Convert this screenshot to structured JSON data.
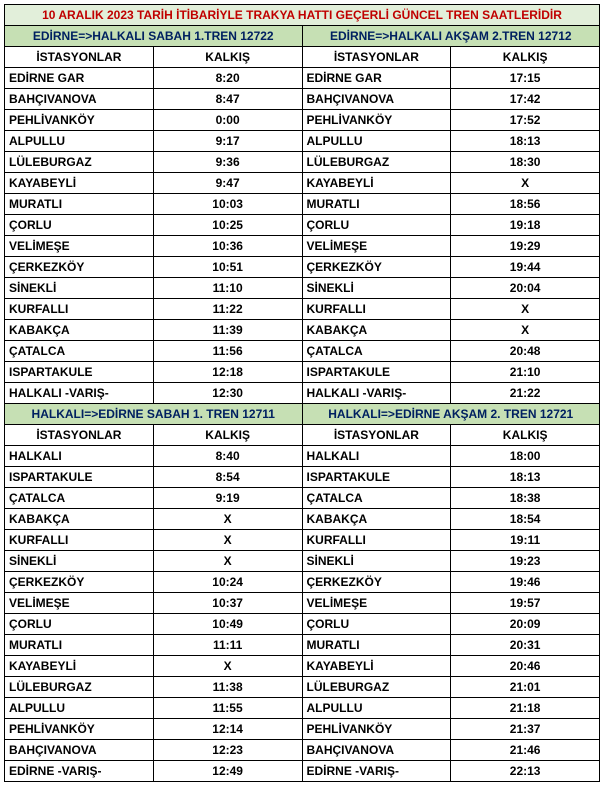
{
  "colors": {
    "titleBg": "#e2efda",
    "titleFg": "#c00000",
    "subBg": "#c6e0b4",
    "subFg": "#002060",
    "border": "#000000",
    "text": "#000000",
    "bg": "#ffffff"
  },
  "title": "10 ARALIK 2023 TARİH İTİBARİYLE TRAKYA HATTI GEÇERLİ GÜNCEL TREN SAATLERİDİR",
  "blocks": [
    {
      "leftTitle": "EDİRNE=>HALKALI SABAH 1.TREN 12722",
      "rightTitle": "EDİRNE=>HALKALI AKŞAM 2.TREN 12712",
      "colHeaders": [
        "İSTASYONLAR",
        "KALKIŞ",
        "İSTASYONLAR",
        "KALKIŞ"
      ],
      "rows": [
        [
          "EDİRNE GAR",
          "8:20",
          "EDİRNE GAR",
          "17:15"
        ],
        [
          "BAHÇIVANOVA",
          "8:47",
          "BAHÇIVANOVA",
          "17:42"
        ],
        [
          "PEHLİVANKÖY",
          "0:00",
          "PEHLİVANKÖY",
          "17:52"
        ],
        [
          "ALPULLU",
          "9:17",
          "ALPULLU",
          "18:13"
        ],
        [
          "LÜLEBURGAZ",
          "9:36",
          "LÜLEBURGAZ",
          "18:30"
        ],
        [
          "KAYABEYLİ",
          "9:47",
          "KAYABEYLİ",
          "X"
        ],
        [
          "MURATLI",
          "10:03",
          "MURATLI",
          "18:56"
        ],
        [
          "ÇORLU",
          "10:25",
          "ÇORLU",
          "19:18"
        ],
        [
          "VELİMEŞE",
          "10:36",
          "VELİMEŞE",
          "19:29"
        ],
        [
          "ÇERKEZKÖY",
          "10:51",
          "ÇERKEZKÖY",
          "19:44"
        ],
        [
          "SİNEKLİ",
          "11:10",
          "SİNEKLİ",
          "20:04"
        ],
        [
          "KURFALLI",
          "11:22",
          "KURFALLI",
          "X"
        ],
        [
          "KABAKÇA",
          "11:39",
          "KABAKÇA",
          "X"
        ],
        [
          "ÇATALCA",
          "11:56",
          "ÇATALCA",
          "20:48"
        ],
        [
          "ISPARTAKULE",
          "12:18",
          "ISPARTAKULE",
          "21:10"
        ],
        [
          "HALKALI -VARIŞ-",
          "12:30",
          "HALKALI -VARIŞ-",
          "21:22"
        ]
      ]
    },
    {
      "leftTitle": "HALKALI=>EDİRNE SABAH 1. TREN 12711",
      "rightTitle": "HALKALI=>EDİRNE AKŞAM 2. TREN 12721",
      "colHeaders": [
        "İSTASYONLAR",
        "KALKIŞ",
        "İSTASYONLAR",
        "KALKIŞ"
      ],
      "rows": [
        [
          "HALKALI",
          "8:40",
          "HALKALI",
          "18:00"
        ],
        [
          "ISPARTAKULE",
          "8:54",
          "ISPARTAKULE",
          "18:13"
        ],
        [
          "ÇATALCA",
          "9:19",
          "ÇATALCA",
          "18:38"
        ],
        [
          "KABAKÇA",
          "X",
          "KABAKÇA",
          "18:54"
        ],
        [
          "KURFALLI",
          "X",
          "KURFALLI",
          "19:11"
        ],
        [
          "SİNEKLİ",
          "X",
          "SİNEKLİ",
          "19:23"
        ],
        [
          "ÇERKEZKÖY",
          "10:24",
          "ÇERKEZKÖY",
          "19:46"
        ],
        [
          "VELİMEŞE",
          "10:37",
          "VELİMEŞE",
          "19:57"
        ],
        [
          "ÇORLU",
          "10:49",
          "ÇORLU",
          "20:09"
        ],
        [
          "MURATLI",
          "11:11",
          "MURATLI",
          "20:31"
        ],
        [
          "KAYABEYLİ",
          "X",
          "KAYABEYLİ",
          "20:46"
        ],
        [
          "LÜLEBURGAZ",
          "11:38",
          "LÜLEBURGAZ",
          "21:01"
        ],
        [
          "ALPULLU",
          "11:55",
          "ALPULLU",
          "21:18"
        ],
        [
          "PEHLİVANKÖY",
          "12:14",
          "PEHLİVANKÖY",
          "21:37"
        ],
        [
          "BAHÇIVANOVA",
          "12:23",
          "BAHÇIVANOVA",
          "21:46"
        ],
        [
          "EDİRNE -VARIŞ-",
          "12:49",
          "EDİRNE -VARIŞ-",
          "22:13"
        ]
      ]
    }
  ]
}
